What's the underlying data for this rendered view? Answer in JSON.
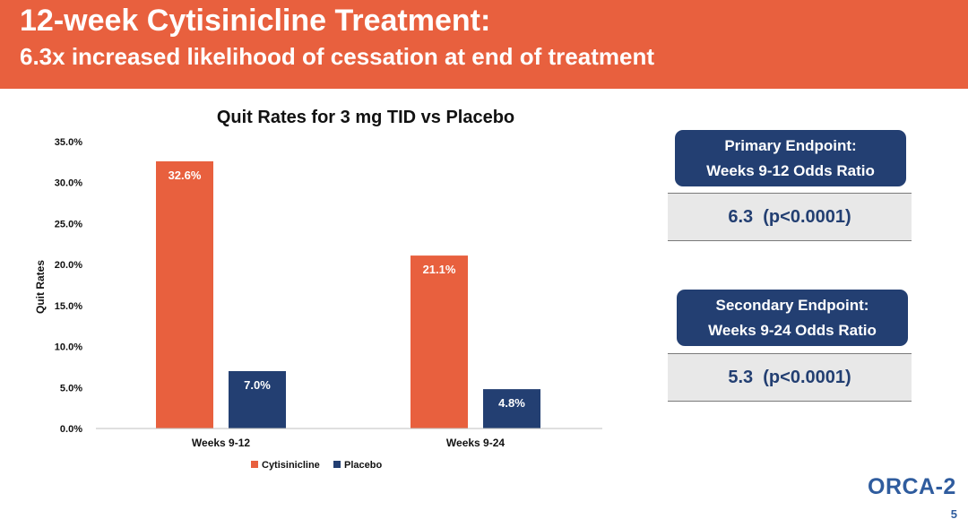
{
  "header": {
    "title": "12-week Cytisinicline Treatment:",
    "subtitle": "6.3x increased likelihood of cessation at end of treatment"
  },
  "colors": {
    "header_bg": "#E8603E",
    "cytisinicline": "#E8603E",
    "placebo": "#233F72",
    "endpoint_header": "#233F72",
    "endpoint_value_bg": "#E8E8E8"
  },
  "chart_data": {
    "type": "bar",
    "title": "Quit Rates for 3 mg TID vs Placebo",
    "xlabel": "",
    "ylabel": "Quit Rates",
    "categories": [
      "Weeks 9-12",
      "Weeks 9-24"
    ],
    "series": [
      {
        "name": "Cytisinicline",
        "values": [
          32.6,
          21.1
        ],
        "labels": [
          "32.6%",
          "21.1%"
        ]
      },
      {
        "name": "Placebo",
        "values": [
          7.0,
          4.8
        ],
        "labels": [
          "7.0%",
          "4.8%"
        ]
      }
    ],
    "ylim": [
      0,
      35
    ],
    "yticks": [
      "0.0%",
      "5.0%",
      "10.0%",
      "15.0%",
      "20.0%",
      "25.0%",
      "30.0%",
      "35.0%"
    ],
    "grid": false,
    "legend": "bottom"
  },
  "endpoints": {
    "primary": {
      "line1": "Primary Endpoint:",
      "line2": "Weeks 9-12 Odds Ratio",
      "value": "6.3  (p<0.0001)"
    },
    "secondary": {
      "line1": "Secondary Endpoint:",
      "line2": "Weeks 9-24 Odds Ratio",
      "value": "5.3  (p<0.0001)"
    }
  },
  "logo": {
    "text": "ORCA-2"
  },
  "page_number": "5"
}
